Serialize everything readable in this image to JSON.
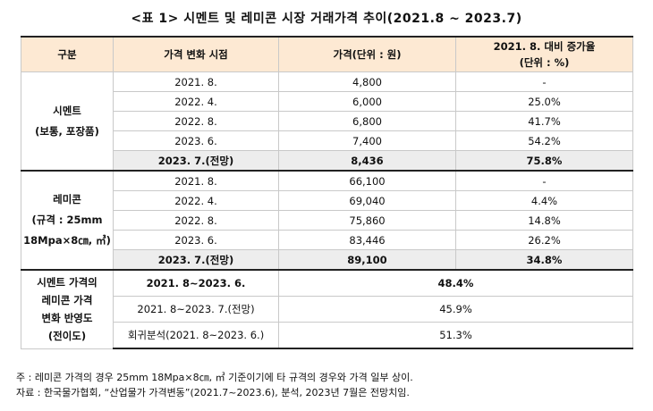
{
  "title": "<표 1> 시멘트 및 레미콘 시장 거래가격 추이(2021.8 ~ 2023.7)",
  "headers": {
    "col1": "구분",
    "col2": "가격 변화 시점",
    "col3": "가격(단위 : 원)",
    "col4_line1": "2021. 8. 대비 증가율",
    "col4_line2": "(단위 : %)"
  },
  "cement": {
    "label_line1": "시멘트",
    "label_line2": "(보통, 포장품)",
    "rows": [
      {
        "date": "2021. 8.",
        "price": "4,800",
        "rate": "-"
      },
      {
        "date": "2022. 4.",
        "price": "6,000",
        "rate": "25.0%"
      },
      {
        "date": "2022. 8.",
        "price": "6,800",
        "rate": "41.7%"
      },
      {
        "date": "2023. 6.",
        "price": "7,400",
        "rate": "54.2%"
      },
      {
        "date": "2023. 7.(전망)",
        "price": "8,436",
        "rate": "75.8%"
      }
    ]
  },
  "remicon": {
    "label_line1": "레미콘",
    "label_line2": "(규격 : 25mm",
    "label_line3": "18Mpa×8㎝, ㎥)",
    "rows": [
      {
        "date": "2021. 8.",
        "price": "66,100",
        "rate": "-"
      },
      {
        "date": "2022. 4.",
        "price": "69,040",
        "rate": "4.4%"
      },
      {
        "date": "2022. 8.",
        "price": "75,860",
        "rate": "14.8%"
      },
      {
        "date": "2023. 6.",
        "price": "83,446",
        "rate": "26.2%"
      },
      {
        "date": "2023. 7.(전망)",
        "price": "89,100",
        "rate": "34.8%"
      }
    ]
  },
  "pass_through": {
    "label_line1": "시멘트 가격의",
    "label_line2": "레미콘 가격",
    "label_line3": "변화 반영도",
    "label_line4": "(전이도)",
    "rows": [
      {
        "period": "2021. 8~2023. 6.",
        "value": "48.4%"
      },
      {
        "period": "2021. 8~2023. 7.(전망)",
        "value": "45.9%"
      },
      {
        "period": "회귀분석(2021. 8~2023. 6.)",
        "value": "51.3%"
      }
    ]
  },
  "notes": {
    "note": "주 : 레미콘 가격의 경우 25mm 18Mpa×8㎝, ㎥ 기준이기에 타 규격의 경우와 가격 일부 상이.",
    "source": "자료 : 한국물가협회, “산업물가 가격변동”(2021.7~2023.6), 분석, 2023년 7월은 전망치임."
  }
}
